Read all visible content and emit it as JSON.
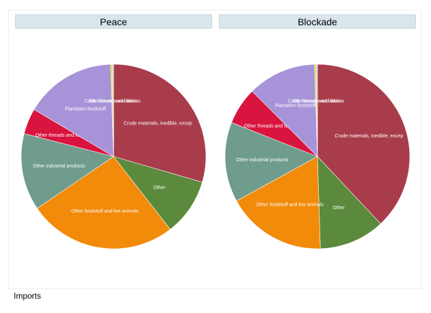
{
  "chart_data": [
    {
      "type": "pie",
      "title": "Peace",
      "slices": [
        {
          "label": "Crude materials, inedible, excep",
          "value": 29.5,
          "color": "#a83c4b"
        },
        {
          "label": "Other",
          "value": 10.0,
          "color": "#5b8a3c"
        },
        {
          "label": "Other foodstuff and live animals",
          "value": 26.0,
          "color": "#f28a0a"
        },
        {
          "label": "Other industrial products",
          "value": 13.5,
          "color": "#6f9c8c"
        },
        {
          "label": "Other threads and fabrics",
          "value": 4.5,
          "color": "#d9143f"
        },
        {
          "label": "Plantation foodstuff",
          "value": 16.0,
          "color": "#a693d8"
        },
        {
          "label": "Cotton threads and fabrics",
          "value": 0.3,
          "color": "#d4dd3a"
        },
        {
          "label": "Silk threads and fabrics",
          "value": 0.2,
          "color": "#c0c0c0"
        }
      ]
    },
    {
      "type": "pie",
      "title": "Blockade",
      "slices": [
        {
          "label": "Crude materials, inedible, excep",
          "value": 38.0,
          "color": "#a83c4b"
        },
        {
          "label": "Other",
          "value": 11.5,
          "color": "#5b8a3c"
        },
        {
          "label": "Other foodstuff and live animals",
          "value": 17.5,
          "color": "#f28a0a"
        },
        {
          "label": "Other industrial products",
          "value": 14.0,
          "color": "#6f9c8c"
        },
        {
          "label": "Other threads and fabrics",
          "value": 6.5,
          "color": "#d9143f"
        },
        {
          "label": "Plantation foodstuff",
          "value": 12.0,
          "color": "#a693d8"
        },
        {
          "label": "Cotton threads and fabrics",
          "value": 0.3,
          "color": "#d4dd3a"
        },
        {
          "label": "Silk threads and fabrics",
          "value": 0.2,
          "color": "#c0c0c0"
        }
      ]
    }
  ],
  "caption": "Imports"
}
